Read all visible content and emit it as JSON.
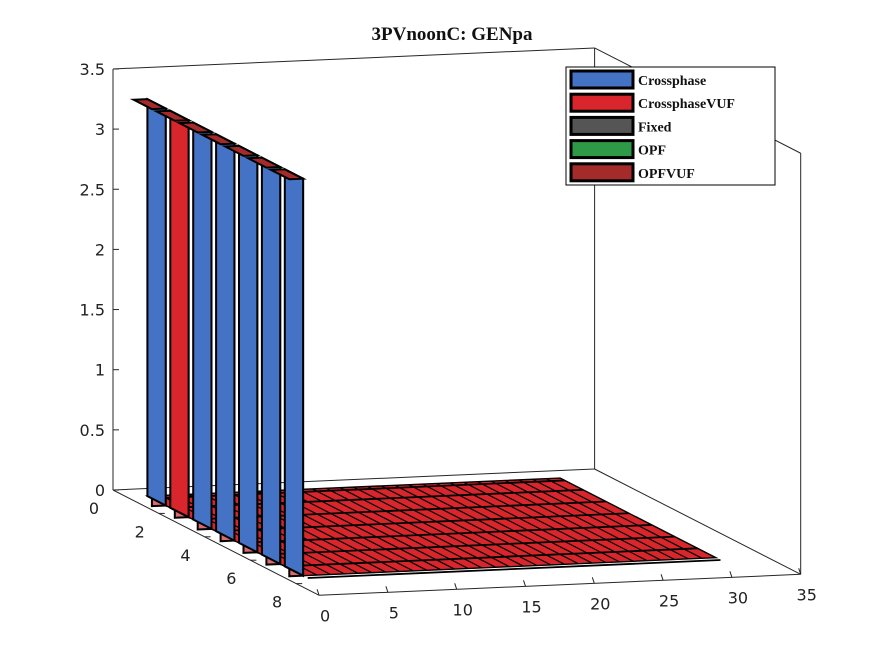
{
  "chart_data": {
    "type": "bar3",
    "title": "3PVnoonC: GENpa",
    "xlabel": "",
    "ylabel": "",
    "zlabel": "",
    "x_ticks": [
      0,
      5,
      10,
      15,
      20,
      25,
      30,
      35
    ],
    "y_ticks": [
      0,
      2,
      4,
      6,
      8
    ],
    "z_ticks": [
      0,
      0.5,
      1,
      1.5,
      2,
      2.5,
      3,
      3.5
    ],
    "xlim": [
      0,
      35
    ],
    "ylim": [
      0,
      9
    ],
    "zlim": [
      0,
      3.5
    ],
    "rows": 7,
    "columns": 31,
    "legend_position": "top-right",
    "series": [
      {
        "name": "Crossphase",
        "color": "#4472C4"
      },
      {
        "name": "CrossphaseVUF",
        "color": "#D9262C"
      },
      {
        "name": "Fixed",
        "color": "#555555"
      },
      {
        "name": "OPF",
        "color": "#2E9A48"
      },
      {
        "name": "OPFVUF",
        "color": "#A52A2A"
      }
    ],
    "row_series": [
      "Crossphase",
      "CrossphaseVUF",
      "Crossphase",
      "Crossphase",
      "Crossphase",
      "Crossphase",
      "Crossphase"
    ],
    "first_column_values": [
      3.3,
      3.3,
      3.3,
      3.3,
      3.3,
      3.3,
      3.3
    ],
    "other_column_value": 0
  }
}
